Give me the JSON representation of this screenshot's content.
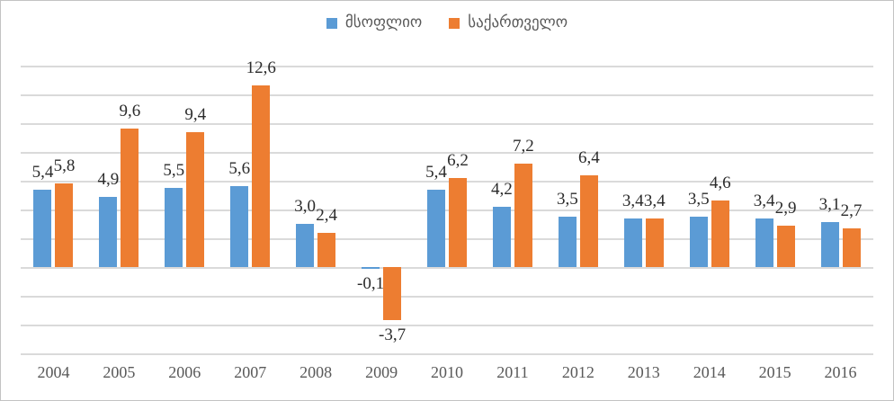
{
  "legend": [
    {
      "key": "world",
      "label": "მსოფლიო",
      "color": "#5b9bd5"
    },
    {
      "key": "georgia",
      "label": "საქართველო",
      "color": "#ed7d31"
    }
  ],
  "chart_data": {
    "type": "bar",
    "title": "",
    "categories": [
      "2004",
      "2005",
      "2006",
      "2007",
      "2008",
      "2009",
      "2010",
      "2011",
      "2012",
      "2013",
      "2014",
      "2015",
      "2016"
    ],
    "series": [
      {
        "name": "მსოფლიო",
        "key": "world",
        "color": "#5b9bd5",
        "values": [
          5.4,
          4.9,
          5.5,
          5.6,
          3.0,
          -0.1,
          5.4,
          4.2,
          3.5,
          3.4,
          3.5,
          3.4,
          3.1
        ],
        "labels": [
          "5,4",
          "4,9",
          "5,5",
          "5,6",
          "3,0",
          "-0,1",
          "5,4",
          "4,2",
          "3,5",
          "3,4",
          "3,5",
          "3,4",
          "3,1"
        ]
      },
      {
        "name": "საქართველო",
        "key": "georgia",
        "color": "#ed7d31",
        "values": [
          5.8,
          9.6,
          9.4,
          12.6,
          2.4,
          -3.7,
          6.2,
          7.2,
          6.4,
          3.4,
          4.6,
          2.9,
          2.7
        ],
        "labels": [
          "5,8",
          "9,6",
          "9,4",
          "12,6",
          "2,4",
          "-3,7",
          "6,2",
          "7,2",
          "6,4",
          "3,4",
          "4,6",
          "2,9",
          "2,7"
        ]
      }
    ],
    "xlabel": "",
    "ylabel": "",
    "ylim": [
      -6,
      14
    ],
    "gridline_step": 2,
    "grid": true,
    "legend_position": "top",
    "decimal_separator": ",",
    "gridline_color": "#dadada"
  }
}
